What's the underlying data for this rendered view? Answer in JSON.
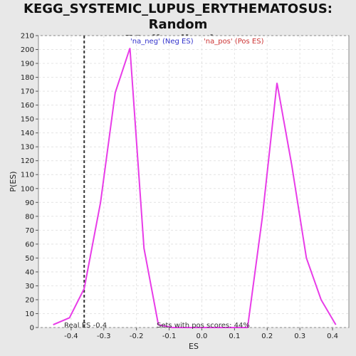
{
  "chart_data": {
    "type": "line",
    "title_line1": "KEGG_SYSTEMIC_LUPUS_ERYTHEMATOSUS: Random",
    "title_line2": "ES distribution",
    "xlabel": "ES",
    "ylabel": "P(ES)",
    "xlim": [
      -0.5,
      0.45
    ],
    "ylim": [
      0,
      210
    ],
    "xticks": [
      -0.4,
      -0.3,
      -0.2,
      -0.1,
      0.0,
      0.1,
      0.2,
      0.3,
      0.4
    ],
    "xtick_labels": [
      "-0.4",
      "-0.3",
      "-0.2",
      "-0.1",
      "0.0",
      "0.1",
      "0.2",
      "0.3",
      "0.4"
    ],
    "yticks": [
      0,
      10,
      20,
      30,
      40,
      50,
      60,
      70,
      80,
      90,
      100,
      110,
      120,
      130,
      140,
      150,
      160,
      170,
      180,
      190,
      200,
      210
    ],
    "grid": true,
    "legend": {
      "placement": "top",
      "entries": [
        {
          "label": "'na_neg' (Neg ES)",
          "color": "#3333cc"
        },
        {
          "label": "'na_pos' (Pos ES)",
          "color": "#cc3333"
        }
      ]
    },
    "series": [
      {
        "color": "#e83ce8",
        "x": [
          -0.455,
          -0.405,
          -0.36,
          -0.31,
          -0.265,
          -0.22,
          -0.177,
          -0.133,
          -0.09,
          -0.045,
          0.0,
          0.045,
          0.09,
          0.14,
          0.185,
          0.23,
          0.275,
          0.32,
          0.365,
          0.41
        ],
        "y": [
          2,
          7,
          28,
          90,
          169,
          201,
          57,
          2,
          0,
          0,
          0,
          0,
          0,
          0,
          79,
          176,
          117,
          50,
          20,
          2
        ]
      }
    ],
    "real_es": {
      "value": -0.36,
      "label": "Real ES -0.4"
    },
    "annotation": "Sets with pos scores: 44%"
  }
}
